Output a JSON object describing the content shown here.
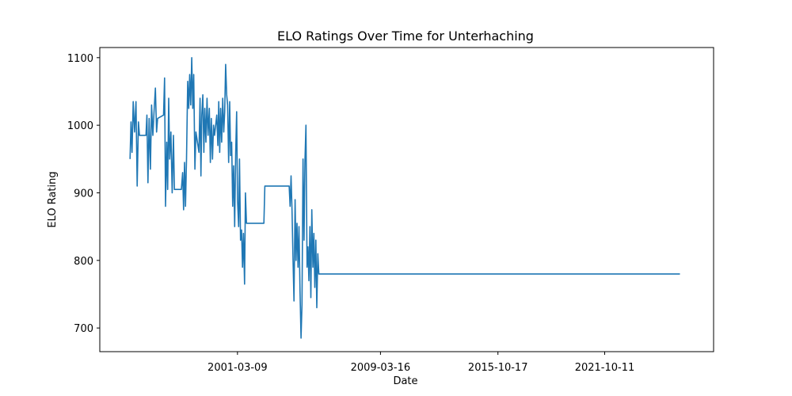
{
  "chart_data": {
    "type": "line",
    "title": "ELO Ratings Over Time for Unterhaching",
    "xlabel": "Date",
    "ylabel": "ELO Rating",
    "xlim": [
      "1993-06-19",
      "2027-11-20"
    ],
    "ylim": [
      665,
      1115
    ],
    "x_ticks": [
      "2001-03-09",
      "2009-03-16",
      "2015-10-17",
      "2021-10-11"
    ],
    "y_ticks": [
      700,
      800,
      900,
      1000,
      1100
    ],
    "grid": false,
    "color": "#1f77b4",
    "series": [
      {
        "name": "",
        "points": [
          [
            "1995-03-01",
            950
          ],
          [
            "1995-03-20",
            1005
          ],
          [
            "1995-04-10",
            960
          ],
          [
            "1995-05-05",
            1035
          ],
          [
            "1995-06-01",
            990
          ],
          [
            "1995-07-01",
            1035
          ],
          [
            "1995-07-25",
            910
          ],
          [
            "1995-08-20",
            1005
          ],
          [
            "1995-09-10",
            985
          ],
          [
            "1996-01-20",
            985
          ],
          [
            "1996-02-10",
            1015
          ],
          [
            "1996-03-01",
            915
          ],
          [
            "1996-03-25",
            1010
          ],
          [
            "1996-04-20",
            935
          ],
          [
            "1996-05-15",
            1030
          ],
          [
            "1996-06-10",
            985
          ],
          [
            "1996-07-05",
            1020
          ],
          [
            "1996-08-01",
            1055
          ],
          [
            "1996-08-25",
            990
          ],
          [
            "1996-09-15",
            1010
          ],
          [
            "1997-01-15",
            1015
          ],
          [
            "1997-02-05",
            1070
          ],
          [
            "1997-02-25",
            880
          ],
          [
            "1997-03-20",
            975
          ],
          [
            "1997-04-10",
            905
          ],
          [
            "1997-05-01",
            1040
          ],
          [
            "1997-05-20",
            950
          ],
          [
            "1997-06-15",
            990
          ],
          [
            "1997-07-10",
            900
          ],
          [
            "1997-08-05",
            985
          ],
          [
            "1997-08-25",
            905
          ],
          [
            "1998-01-15",
            905
          ],
          [
            "1998-02-10",
            930
          ],
          [
            "1998-03-01",
            875
          ],
          [
            "1998-03-20",
            945
          ],
          [
            "1998-04-10",
            880
          ],
          [
            "1998-05-01",
            950
          ],
          [
            "1998-05-25",
            1065
          ],
          [
            "1998-06-15",
            1025
          ],
          [
            "1998-07-05",
            1075
          ],
          [
            "1998-07-25",
            1030
          ],
          [
            "1998-08-15",
            1100
          ],
          [
            "1998-09-05",
            1025
          ],
          [
            "1998-09-25",
            1075
          ],
          [
            "1998-10-20",
            935
          ],
          [
            "1998-11-10",
            990
          ],
          [
            "1999-01-10",
            960
          ],
          [
            "1999-02-01",
            1040
          ],
          [
            "1999-02-20",
            925
          ],
          [
            "1999-03-10",
            1015
          ],
          [
            "1999-03-30",
            1045
          ],
          [
            "1999-04-20",
            960
          ],
          [
            "1999-05-10",
            1025
          ],
          [
            "1999-06-01",
            975
          ],
          [
            "1999-06-25",
            1040
          ],
          [
            "1999-07-15",
            985
          ],
          [
            "1999-08-10",
            1025
          ],
          [
            "1999-09-01",
            945
          ],
          [
            "1999-09-20",
            1010
          ],
          [
            "1999-10-15",
            950
          ],
          [
            "1999-11-05",
            1000
          ],
          [
            "1999-11-25",
            985
          ],
          [
            "2000-01-10",
            1015
          ],
          [
            "2000-02-01",
            970
          ],
          [
            "2000-02-20",
            1035
          ],
          [
            "2000-03-10",
            960
          ],
          [
            "2000-03-30",
            1025
          ],
          [
            "2000-04-20",
            975
          ],
          [
            "2000-05-10",
            1040
          ],
          [
            "2000-06-01",
            990
          ],
          [
            "2000-06-20",
            1020
          ],
          [
            "2000-07-10",
            1090
          ],
          [
            "2000-07-30",
            1045
          ],
          [
            "2000-08-20",
            1030
          ],
          [
            "2000-09-10",
            945
          ],
          [
            "2000-10-01",
            1035
          ],
          [
            "2000-10-20",
            955
          ],
          [
            "2000-11-10",
            975
          ],
          [
            "2000-12-01",
            880
          ],
          [
            "2000-12-20",
            940
          ],
          [
            "2001-01-10",
            850
          ],
          [
            "2001-02-01",
            960
          ],
          [
            "2001-02-20",
            1020
          ],
          [
            "2001-03-10",
            890
          ],
          [
            "2001-04-01",
            850
          ],
          [
            "2001-04-20",
            950
          ],
          [
            "2001-05-10",
            830
          ],
          [
            "2001-06-01",
            845
          ],
          [
            "2001-06-20",
            790
          ],
          [
            "2001-07-10",
            840
          ],
          [
            "2001-08-01",
            765
          ],
          [
            "2001-08-20",
            900
          ],
          [
            "2001-09-10",
            855
          ],
          [
            "2002-09-01",
            855
          ],
          [
            "2002-09-20",
            910
          ],
          [
            "2004-02-01",
            910
          ],
          [
            "2004-02-20",
            880
          ],
          [
            "2004-03-10",
            925
          ],
          [
            "2004-03-30",
            875
          ],
          [
            "2004-04-20",
            800
          ],
          [
            "2004-05-10",
            740
          ],
          [
            "2004-06-01",
            890
          ],
          [
            "2004-06-20",
            800
          ],
          [
            "2004-07-10",
            855
          ],
          [
            "2004-08-01",
            790
          ],
          [
            "2004-08-20",
            850
          ],
          [
            "2004-09-10",
            755
          ],
          [
            "2004-10-01",
            685
          ],
          [
            "2004-10-20",
            735
          ],
          [
            "2004-11-10",
            950
          ],
          [
            "2004-12-01",
            830
          ],
          [
            "2004-12-20",
            945
          ],
          [
            "2005-01-10",
            1000
          ],
          [
            "2005-02-01",
            790
          ],
          [
            "2005-02-20",
            820
          ],
          [
            "2005-03-10",
            770
          ],
          [
            "2005-04-01",
            850
          ],
          [
            "2005-04-20",
            745
          ],
          [
            "2005-05-10",
            875
          ],
          [
            "2005-06-01",
            790
          ],
          [
            "2005-06-20",
            840
          ],
          [
            "2005-07-10",
            760
          ],
          [
            "2005-08-01",
            830
          ],
          [
            "2005-08-20",
            730
          ],
          [
            "2005-09-10",
            810
          ],
          [
            "2005-10-01",
            780
          ],
          [
            "2025-12-31",
            780
          ]
        ]
      }
    ]
  }
}
